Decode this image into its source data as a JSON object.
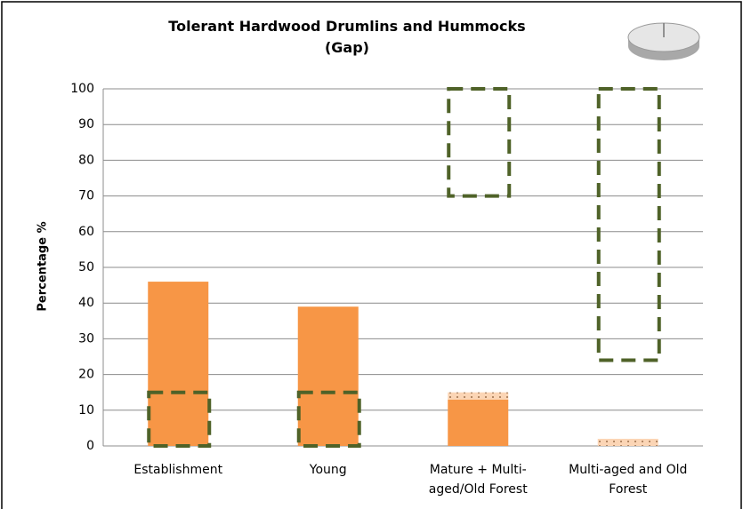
{
  "chart_data": {
    "type": "bar",
    "title": "Tolerant Hardwood Drumlins and Hummocks",
    "subtitle": "(Gap)",
    "ylabel": "Percentage %",
    "categories": [
      "Establishment",
      "Young",
      "Mature + Multi-aged/Old Forest",
      "Multi-aged and Old Forest"
    ],
    "series": [
      {
        "color": "#f79646",
        "values": [
          46,
          39,
          13,
          0
        ]
      },
      {
        "color": "#fbd5b5",
        "pattern": "dotted",
        "values": [
          0,
          0,
          2,
          2
        ]
      }
    ],
    "target_ranges": {
      "color": "#4f6228",
      "low": [
        0,
        0,
        70,
        24
      ],
      "high": [
        15,
        15,
        100,
        100
      ]
    },
    "ylim": [
      0,
      100
    ],
    "yticks": [
      0,
      10,
      20,
      30,
      40,
      50,
      60,
      70,
      80,
      90,
      100
    ],
    "grid": true
  }
}
